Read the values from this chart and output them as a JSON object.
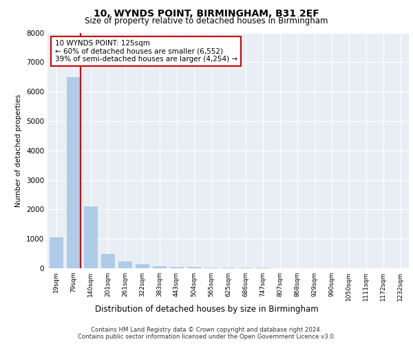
{
  "title": "10, WYNDS POINT, BIRMINGHAM, B31 2EF",
  "subtitle": "Size of property relative to detached houses in Birmingham",
  "xlabel": "Distribution of detached houses by size in Birmingham",
  "ylabel": "Number of detached properties",
  "annotation_title": "10 WYNDS POINT: 125sqm",
  "annotation_line2": "← 60% of detached houses are smaller (6,552)",
  "annotation_line3": "39% of semi-detached houses are larger (4,254) →",
  "categories": [
    "19sqm",
    "79sqm",
    "140sqm",
    "201sqm",
    "261sqm",
    "322sqm",
    "383sqm",
    "443sqm",
    "504sqm",
    "565sqm",
    "625sqm",
    "686sqm",
    "747sqm",
    "807sqm",
    "868sqm",
    "929sqm",
    "990sqm",
    "1050sqm",
    "1111sqm",
    "1172sqm",
    "1232sqm"
  ],
  "values": [
    1050,
    6500,
    2100,
    500,
    230,
    130,
    80,
    55,
    40,
    30,
    22,
    18,
    14,
    10,
    8,
    7,
    6,
    5,
    4,
    3,
    2
  ],
  "bar_color": "#aecce8",
  "highlight_color": "#cc0000",
  "background_color": "#e8eef4",
  "grid_color": "#ffffff",
  "annotation_box_color": "#ffffff",
  "annotation_box_edge": "#cc0000",
  "footer_line1": "Contains HM Land Registry data © Crown copyright and database right 2024.",
  "footer_line2": "Contains public sector information licensed under the Open Government Licence v3.0.",
  "ylim": [
    0,
    8000
  ],
  "yticks": [
    0,
    1000,
    2000,
    3000,
    4000,
    5000,
    6000,
    7000,
    8000
  ],
  "subject_idx": 1
}
